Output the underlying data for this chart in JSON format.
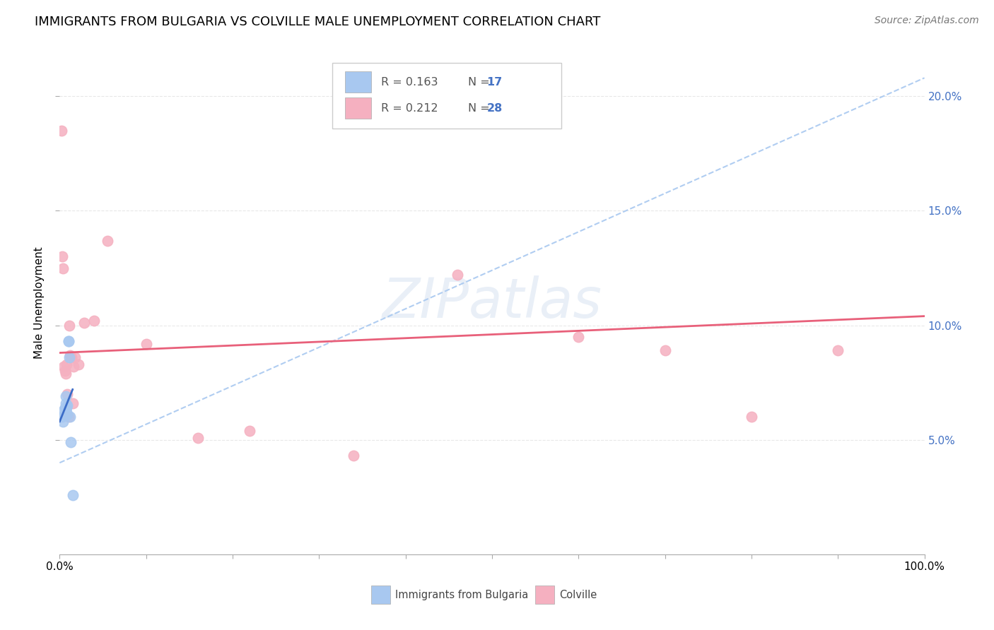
{
  "title": "IMMIGRANTS FROM BULGARIA VS COLVILLE MALE UNEMPLOYMENT CORRELATION CHART",
  "source": "Source: ZipAtlas.com",
  "ylabel": "Male Unemployment",
  "watermark": "ZIPatlas",
  "legend": {
    "blue_R": "R = 0.163",
    "blue_N": "N = 17",
    "pink_R": "R = 0.212",
    "pink_N": "N = 28"
  },
  "xlim": [
    0.0,
    1.0
  ],
  "ylim": [
    0.0,
    0.22
  ],
  "yticks": [
    0.05,
    0.1,
    0.15,
    0.2
  ],
  "ytick_labels": [
    "5.0%",
    "10.0%",
    "15.0%",
    "20.0%"
  ],
  "blue_scatter": {
    "x": [
      0.003,
      0.004,
      0.005,
      0.006,
      0.006,
      0.007,
      0.007,
      0.008,
      0.008,
      0.009,
      0.009,
      0.01,
      0.01,
      0.011,
      0.012,
      0.013,
      0.015
    ],
    "y": [
      0.06,
      0.058,
      0.063,
      0.064,
      0.061,
      0.066,
      0.069,
      0.062,
      0.064,
      0.061,
      0.065,
      0.093,
      0.093,
      0.086,
      0.06,
      0.049,
      0.026
    ]
  },
  "pink_scatter": {
    "x": [
      0.002,
      0.003,
      0.004,
      0.005,
      0.006,
      0.007,
      0.008,
      0.009,
      0.01,
      0.011,
      0.012,
      0.014,
      0.015,
      0.016,
      0.018,
      0.022,
      0.028,
      0.04,
      0.055,
      0.1,
      0.16,
      0.22,
      0.34,
      0.46,
      0.6,
      0.7,
      0.8,
      0.9
    ],
    "y": [
      0.185,
      0.13,
      0.125,
      0.082,
      0.08,
      0.079,
      0.083,
      0.07,
      0.06,
      0.1,
      0.087,
      0.086,
      0.066,
      0.082,
      0.086,
      0.083,
      0.101,
      0.102,
      0.137,
      0.092,
      0.051,
      0.054,
      0.043,
      0.122,
      0.095,
      0.089,
      0.06,
      0.089
    ]
  },
  "blue_line": {
    "x": [
      0.0,
      0.015
    ],
    "y": [
      0.058,
      0.072
    ]
  },
  "blue_dashed_line": {
    "x": [
      0.0,
      1.0
    ],
    "y": [
      0.04,
      0.208
    ]
  },
  "pink_line": {
    "x": [
      0.0,
      1.0
    ],
    "y": [
      0.088,
      0.104
    ]
  },
  "scatter_size": 110,
  "blue_color": "#A8C8F0",
  "pink_color": "#F5B0C0",
  "blue_line_color": "#3B6CC7",
  "pink_line_color": "#E8607A",
  "blue_dashed_color": "#A8C8F0",
  "grid_color": "#E8E8E8",
  "background_color": "#FFFFFF",
  "title_fontsize": 13,
  "axis_label_fontsize": 11,
  "tick_fontsize": 11,
  "source_fontsize": 10
}
